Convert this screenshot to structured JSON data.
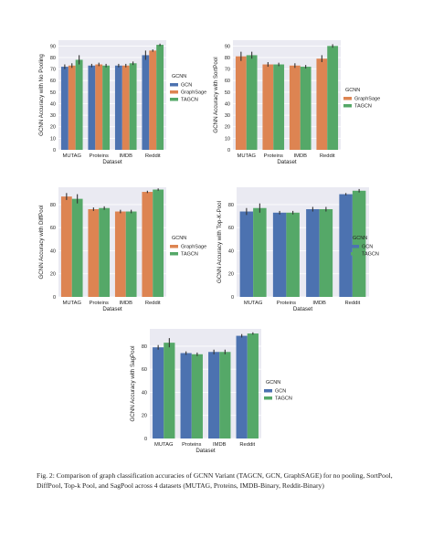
{
  "caption": "Fig. 2: Comparison of graph classification accuracies of GCNN Variant (TAGCN, GCN, GraphSAGE) for no pooling, SortPool, DiffPool, Top-k Pool, and SagPool across 4 datasets (MUTAG, Proteins, IMDB-Binary, Reddit-Binary)",
  "colors": {
    "GCN": "#4c72b0",
    "GraphSage": "#dd8452",
    "TAGCN": "#55a868",
    "panel_bg": "#eaeaf2",
    "error_bar": "#333333"
  },
  "chart_data": [
    {
      "type": "bar",
      "categories": [
        "MUTAG",
        "Proteins",
        "IMDB",
        "Reddit"
      ],
      "xlabel": "Dataset",
      "ylabel": "GCNN Accuracy with No Pooling",
      "ylim": [
        0,
        95
      ],
      "yticks": [
        0,
        10,
        20,
        30,
        40,
        50,
        60,
        70,
        80,
        90
      ],
      "legend_title": "GCNN",
      "legend_position": "right",
      "series": [
        {
          "name": "GCN",
          "values": [
            72,
            73,
            73,
            82
          ],
          "errors": [
            2,
            1.5,
            1.5,
            4
          ]
        },
        {
          "name": "GraphSage",
          "values": [
            73,
            74,
            73,
            86
          ],
          "errors": [
            2,
            1.5,
            1.5,
            1
          ]
        },
        {
          "name": "TAGCN",
          "values": [
            78,
            73,
            75,
            91
          ],
          "errors": [
            4,
            1.5,
            1.5,
            1
          ]
        }
      ]
    },
    {
      "type": "bar",
      "categories": [
        "MUTAG",
        "Proteins",
        "IMDB",
        "Reddit"
      ],
      "xlabel": "Dataset",
      "ylabel": "GCNN Accuracy with SortPool",
      "ylim": [
        0,
        95
      ],
      "yticks": [
        0,
        10,
        20,
        30,
        40,
        50,
        60,
        70,
        80,
        90
      ],
      "legend_title": "GCNN",
      "legend_position": "right",
      "series": [
        {
          "name": "GraphSage",
          "values": [
            81,
            74,
            73,
            79
          ],
          "errors": [
            4,
            2,
            2,
            3
          ]
        },
        {
          "name": "TAGCN",
          "values": [
            82,
            74,
            72,
            90
          ],
          "errors": [
            3,
            1.5,
            1.5,
            1.5
          ]
        }
      ]
    },
    {
      "type": "bar",
      "categories": [
        "MUTAG",
        "Proteins",
        "IMDB",
        "Reddit"
      ],
      "xlabel": "Dataset",
      "ylabel": "GCNN Accuracy with DiffPool",
      "ylim": [
        0,
        95
      ],
      "yticks": [
        0,
        20,
        40,
        60,
        80
      ],
      "legend_title": "GCNN",
      "legend_position": "right",
      "series": [
        {
          "name": "GraphSage",
          "values": [
            87,
            76,
            74,
            91
          ],
          "errors": [
            3,
            1.5,
            1.5,
            1
          ]
        },
        {
          "name": "TAGCN",
          "values": [
            85,
            77,
            74,
            93
          ],
          "errors": [
            4,
            1.5,
            1.5,
            1
          ]
        }
      ]
    },
    {
      "type": "bar",
      "categories": [
        "MUTAG",
        "Proteins",
        "IMDB",
        "Reddit"
      ],
      "xlabel": "Dataset",
      "ylabel": "GCNN Accuracy with Top-K-Pool",
      "ylim": [
        0,
        95
      ],
      "yticks": [
        0,
        20,
        40,
        60,
        80
      ],
      "legend_title": "GCNN",
      "legend_position": "right",
      "series": [
        {
          "name": "GCN",
          "values": [
            74,
            73,
            76,
            89
          ],
          "errors": [
            3,
            1.5,
            2,
            1
          ]
        },
        {
          "name": "TAGCN",
          "values": [
            77,
            73,
            76,
            92
          ],
          "errors": [
            4,
            1.5,
            2,
            1.5
          ]
        }
      ]
    },
    {
      "type": "bar",
      "categories": [
        "MUTAG",
        "Proteins",
        "IMDB",
        "Reddit"
      ],
      "xlabel": "Dataset",
      "ylabel": "GCNN Accuracy with SagPool",
      "ylim": [
        0,
        95
      ],
      "yticks": [
        0,
        20,
        40,
        60,
        80
      ],
      "legend_title": "GCNN",
      "legend_position": "right",
      "series": [
        {
          "name": "GCN",
          "values": [
            79,
            74,
            75,
            89
          ],
          "errors": [
            2,
            1.5,
            2,
            1.5
          ]
        },
        {
          "name": "TAGCN",
          "values": [
            83,
            73,
            75,
            91
          ],
          "errors": [
            4,
            1.5,
            2,
            1
          ]
        }
      ]
    }
  ]
}
